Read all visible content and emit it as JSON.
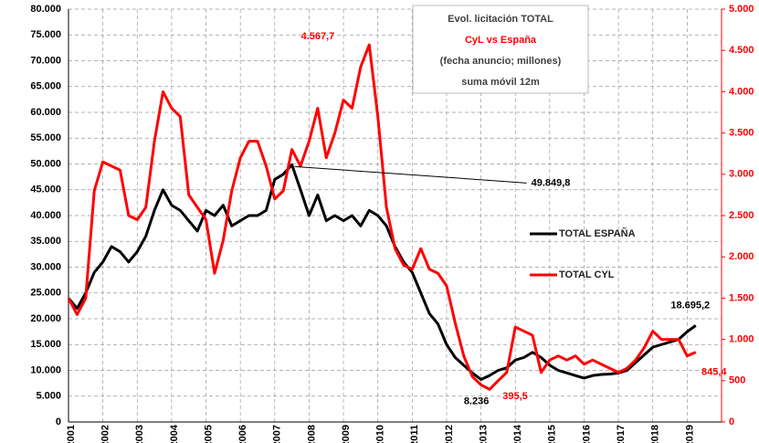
{
  "chart_data": {
    "type": "line",
    "title": [
      "Evol. licitación TOTAL",
      "CyL vs España",
      "(fecha anuncio; millones)",
      "suma móvil 12m"
    ],
    "x": [
      2001,
      2001.25,
      2001.5,
      2001.75,
      2002,
      2002.25,
      2002.5,
      2002.75,
      2003,
      2003.25,
      2003.5,
      2003.75,
      2004,
      2004.25,
      2004.5,
      2004.75,
      2005,
      2005.25,
      2005.5,
      2005.75,
      2006,
      2006.25,
      2006.5,
      2006.75,
      2007,
      2007.25,
      2007.5,
      2007.75,
      2008,
      2008.25,
      2008.5,
      2008.75,
      2009,
      2009.25,
      2009.5,
      2009.75,
      2010,
      2010.25,
      2010.5,
      2010.75,
      2011,
      2011.25,
      2011.5,
      2011.75,
      2012,
      2012.25,
      2012.5,
      2012.75,
      2013,
      2013.25,
      2013.5,
      2013.75,
      2014,
      2014.25,
      2014.5,
      2014.75,
      2015,
      2015.25,
      2015.5,
      2015.75,
      2016,
      2016.25,
      2016.5,
      2016.75,
      2017,
      2017.25,
      2017.5,
      2017.75,
      2018,
      2018.25,
      2018.5,
      2018.75,
      2019,
      2019.25
    ],
    "series": [
      {
        "name": "TOTAL ESPAÑA",
        "color": "#000000",
        "values": [
          24000,
          22000,
          25000,
          29000,
          31000,
          34000,
          33000,
          31000,
          33000,
          36000,
          41000,
          45000,
          42000,
          41000,
          39000,
          37000,
          41000,
          40000,
          42000,
          38000,
          39000,
          40000,
          40000,
          41000,
          47000,
          48000,
          49849.8,
          45000,
          40000,
          44000,
          39000,
          40000,
          39000,
          40000,
          38000,
          41000,
          40000,
          38000,
          34000,
          31000,
          29000,
          25000,
          21000,
          19000,
          15000,
          12500,
          11000,
          9500,
          8236,
          9000,
          10000,
          10500,
          12000,
          12500,
          13500,
          12500,
          11000,
          10000,
          9500,
          9000,
          8500,
          9000,
          9200,
          9300,
          9500,
          10000,
          11500,
          13000,
          14500,
          15000,
          15500,
          16000,
          17500,
          18695.2
        ],
        "value_labels": [
          null,
          null,
          null,
          null,
          null,
          null,
          null,
          null,
          null,
          null,
          null,
          null,
          null,
          null,
          null,
          null,
          null,
          null,
          null,
          null,
          null,
          null,
          null,
          null,
          null,
          null,
          "49.849,8",
          null,
          null,
          null,
          null,
          null,
          null,
          null,
          null,
          null,
          null,
          null,
          null,
          null,
          null,
          null,
          null,
          null,
          null,
          null,
          null,
          null,
          "8.236",
          null,
          null,
          null,
          null,
          null,
          null,
          null,
          null,
          null,
          null,
          null,
          null,
          null,
          null,
          null,
          null,
          null,
          null,
          null,
          null,
          null,
          null,
          null,
          null,
          "18.695,2"
        ]
      },
      {
        "name": "TOTAL CYL",
        "color": "#ff0000",
        "axis": "y2",
        "values": [
          1500,
          1300,
          1500,
          2800,
          3150,
          3100,
          3050,
          2500,
          2450,
          2600,
          3400,
          4000,
          3800,
          3700,
          2750,
          2600,
          2450,
          1800,
          2200,
          2800,
          3200,
          3400,
          3400,
          3100,
          2700,
          2800,
          3300,
          3100,
          3400,
          3800,
          3200,
          3500,
          3900,
          3800,
          4300,
          4567.7,
          3700,
          2600,
          2100,
          1900,
          1850,
          2100,
          1850,
          1800,
          1650,
          1200,
          800,
          550,
          450,
          395.5,
          500,
          600,
          1150,
          1100,
          1050,
          600,
          750,
          800,
          750,
          800,
          700,
          750,
          700,
          650,
          600,
          650,
          750,
          900,
          1100,
          1000,
          1000,
          1000,
          800,
          845.4
        ],
        "value_labels": [
          null,
          null,
          null,
          null,
          null,
          null,
          null,
          null,
          null,
          null,
          null,
          null,
          null,
          null,
          null,
          null,
          null,
          null,
          null,
          null,
          null,
          null,
          null,
          null,
          null,
          null,
          null,
          null,
          null,
          null,
          null,
          null,
          null,
          null,
          null,
          "4.567,7",
          null,
          null,
          null,
          null,
          null,
          null,
          null,
          null,
          null,
          null,
          null,
          null,
          null,
          "395,5",
          null,
          null,
          null,
          null,
          null,
          null,
          null,
          null,
          null,
          null,
          null,
          null,
          null,
          null,
          null,
          null,
          null,
          null,
          null,
          null,
          null,
          null,
          null,
          "845,4"
        ]
      }
    ],
    "xlim": [
      2001,
      2020
    ],
    "xticks": [
      2001,
      2002,
      2003,
      2004,
      2005,
      2006,
      2007,
      2008,
      2009,
      2010,
      2011,
      2012,
      2013,
      2014,
      2015,
      2016,
      2017,
      2018,
      2019
    ],
    "ylim": [
      0,
      80000
    ],
    "yticks": [
      0,
      {
        "value": 5000,
        "label": "5.000"
      },
      {
        "value": 10000,
        "label": "10.000"
      },
      {
        "value": 15000,
        "label": "15.000"
      },
      {
        "value": 20000,
        "label": "20.000"
      },
      {
        "value": 25000,
        "label": "25.000"
      },
      {
        "value": 30000,
        "label": "30.000"
      },
      {
        "value": 35000,
        "label": "35.000"
      },
      {
        "value": 40000,
        "label": "40.000"
      },
      {
        "value": 45000,
        "label": "45.000"
      },
      {
        "value": 50000,
        "label": "50.000"
      },
      {
        "value": 55000,
        "label": "55.000"
      },
      {
        "value": 60000,
        "label": "60.000"
      },
      {
        "value": 65000,
        "label": "65.000"
      },
      {
        "value": 70000,
        "label": "70.000"
      },
      {
        "value": 75000,
        "label": "75.000"
      },
      {
        "value": 80000,
        "label": "80.000"
      }
    ],
    "y2lim": [
      0,
      5000
    ],
    "y2ticks": [
      0,
      500,
      {
        "value": 1000,
        "label": "1.000"
      },
      {
        "value": 1500,
        "label": "1.500"
      },
      {
        "value": 2000,
        "label": "2.000"
      },
      {
        "value": 2500,
        "label": "2.500"
      },
      {
        "value": 3000,
        "label": "3.000"
      },
      {
        "value": 3500,
        "label": "3.500"
      },
      {
        "value": 4000,
        "label": "4.000"
      },
      {
        "value": 4500,
        "label": "4.500"
      },
      {
        "value": 5000,
        "label": "5.000"
      }
    ],
    "grid": true
  }
}
